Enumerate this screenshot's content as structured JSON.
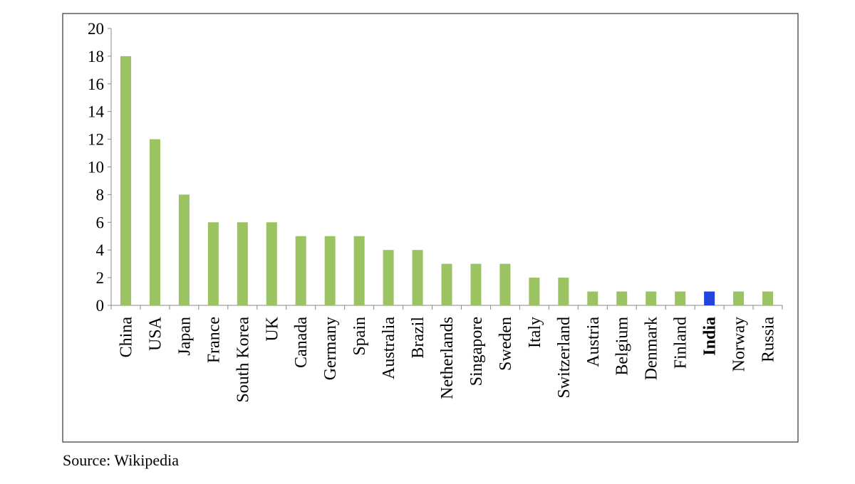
{
  "chart_data": {
    "type": "bar",
    "categories": [
      "China",
      "USA",
      "Japan",
      "France",
      "South Korea",
      "UK",
      "Canada",
      "Germany",
      "Spain",
      "Australia",
      "Brazil",
      "Netherlands",
      "Singapore",
      "Sweden",
      "Italy",
      "Switzerland",
      "Austria",
      "Belgium",
      "Denmark",
      "Finland",
      "India",
      "Norway",
      "Russia"
    ],
    "values": [
      18,
      12,
      8,
      6,
      6,
      6,
      5,
      5,
      5,
      4,
      4,
      3,
      3,
      3,
      2,
      2,
      1,
      1,
      1,
      1,
      1,
      1,
      1
    ],
    "highlight": "India",
    "bar_color": "#9bc361",
    "highlight_color": "#2244dd",
    "ylim": [
      0,
      20
    ],
    "yticks": [
      "0",
      "2",
      "4",
      "6",
      "8",
      "10",
      "12",
      "14",
      "16",
      "18",
      "20"
    ],
    "title": "",
    "xlabel": "",
    "ylabel": "",
    "grid": false,
    "legend": "none"
  },
  "source": "Source: Wikipedia"
}
